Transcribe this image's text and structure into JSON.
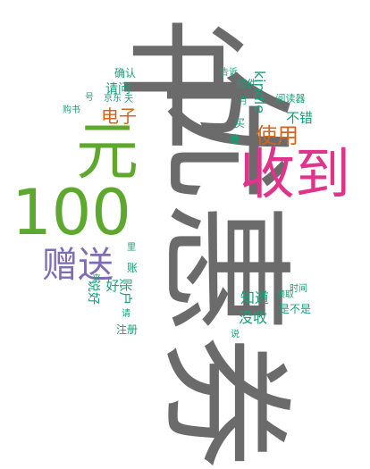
{
  "words": [
    {
      "text": "书",
      "color": "#6b6b6b",
      "size": 150,
      "orient": "h"
    },
    {
      "text": "优惠券",
      "color": "#6b6b6b",
      "size": 150,
      "orient": "v"
    },
    {
      "text": "收到",
      "color": "#e0338b",
      "size": 62,
      "orient": "h"
    },
    {
      "text": "元",
      "color": "#5fa830",
      "size": 70,
      "orient": "h"
    },
    {
      "text": "100",
      "color": "#5fa830",
      "size": 70,
      "orient": "h"
    },
    {
      "text": "赠送",
      "color": "#7e6cb5",
      "size": 40,
      "orient": "h"
    },
    {
      "text": "使用",
      "color": "#d4641d",
      "size": 24,
      "orient": "h"
    },
    {
      "text": "电子",
      "color": "#d4641d",
      "size": 20,
      "orient": "h"
    },
    {
      "text": "kindle",
      "color": "#1a9e78",
      "size": 16,
      "orient": "v"
    },
    {
      "text": "不错",
      "color": "#1a9e78",
      "size": 15,
      "orient": "h"
    },
    {
      "text": "阅读器",
      "color": "#1a9e78",
      "size": 11,
      "orient": "h"
    },
    {
      "text": "知道",
      "color": "#1a9e78",
      "size": 16,
      "orient": "h"
    },
    {
      "text": "没收",
      "color": "#1a9e78",
      "size": 16,
      "orient": "h"
    },
    {
      "text": "账户",
      "color": "#1a9e78",
      "size": 15,
      "orient": "v"
    },
    {
      "text": "好",
      "color": "#1a9e78",
      "size": 15,
      "orient": "h"
    },
    {
      "text": "账",
      "color": "#1a9e78",
      "size": 12,
      "orient": "h"
    },
    {
      "text": "说好",
      "color": "#1a9e78",
      "size": 14,
      "orient": "v"
    },
    {
      "text": "请问",
      "color": "#1a9e78",
      "size": 14,
      "orient": "h"
    },
    {
      "text": "确认",
      "color": "#1a9e78",
      "size": 12,
      "orient": "h"
    },
    {
      "text": "购书",
      "color": "#1a9e78",
      "size": 10,
      "orient": "h"
    },
    {
      "text": "注册",
      "color": "#1a9e78",
      "size": 12,
      "orient": "h"
    },
    {
      "text": "是不是",
      "color": "#1a9e78",
      "size": 12,
      "orient": "h"
    },
    {
      "text": "领取",
      "color": "#1a9e78",
      "size": 10,
      "orient": "h"
    },
    {
      "text": "卷",
      "color": "#1a9e78",
      "size": 12,
      "orient": "h"
    },
    {
      "text": "买",
      "color": "#1a9e78",
      "size": 12,
      "orient": "h"
    },
    {
      "text": "月",
      "color": "#1a9e78",
      "size": 10,
      "orient": "h"
    },
    {
      "text": "邮件",
      "color": "#1a9e78",
      "size": 12,
      "orient": "h"
    },
    {
      "text": "里",
      "color": "#1a9e78",
      "size": 10,
      "orient": "h"
    },
    {
      "text": "请",
      "color": "#1a9e78",
      "size": 10,
      "orient": "h"
    },
    {
      "text": "说",
      "color": "#1a9e78",
      "size": 10,
      "orient": "h"
    },
    {
      "text": "来",
      "color": "#1a9e78",
      "size": 10,
      "orient": "h"
    },
    {
      "text": "天",
      "color": "#1a9e78",
      "size": 10,
      "orient": "h"
    },
    {
      "text": "号",
      "color": "#1a9e78",
      "size": 10,
      "orient": "h"
    },
    {
      "text": "时间",
      "color": "#1a9e78",
      "size": 10,
      "orient": "h"
    },
    {
      "text": "告诉",
      "color": "#1a9e78",
      "size": 10,
      "orient": "h"
    },
    {
      "text": "京东",
      "color": "#1a9e78",
      "size": 10,
      "orient": "h"
    }
  ]
}
